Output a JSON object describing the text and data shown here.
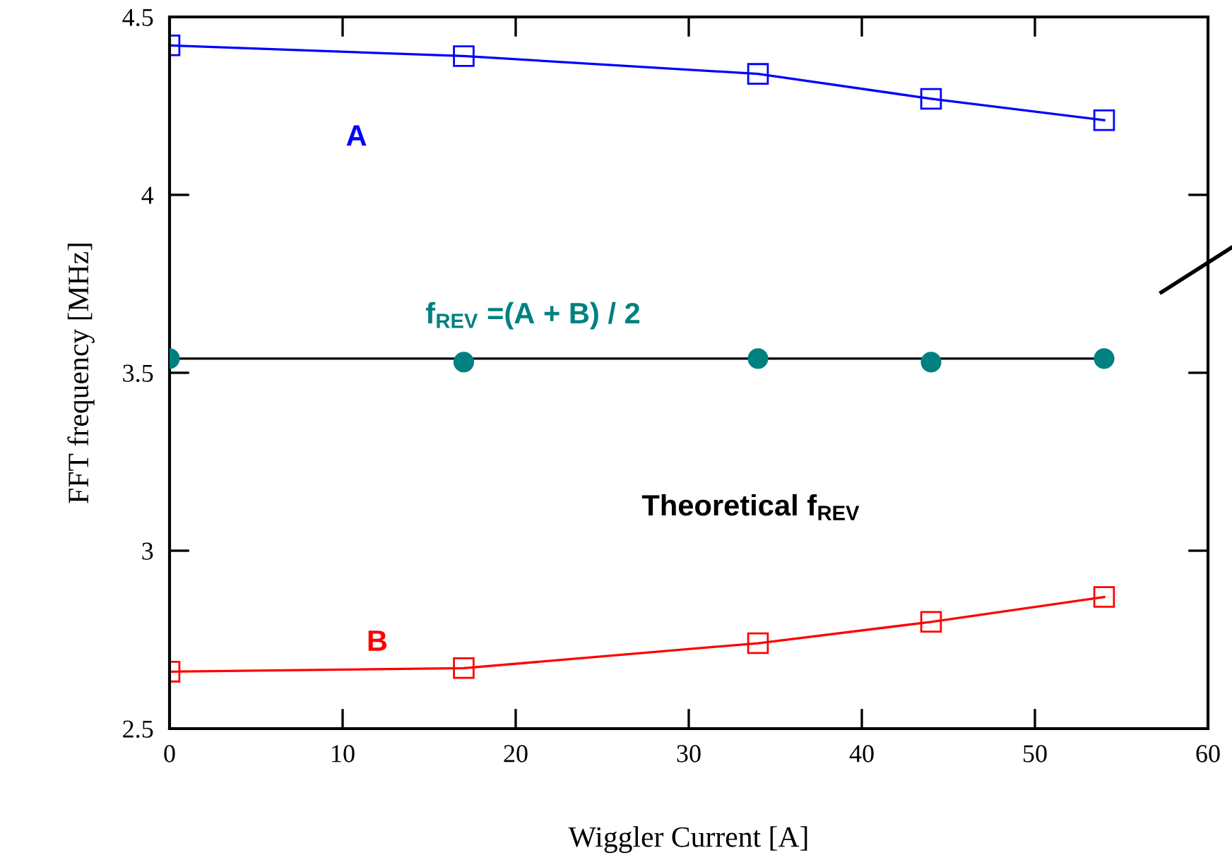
{
  "chart_data": {
    "type": "line",
    "xlabel": "Wiggler Current [A]",
    "ylabel": "FFT frequency [MHz]",
    "xlim": [
      0,
      60
    ],
    "xticks": [
      0,
      10,
      20,
      30,
      40,
      50,
      60
    ],
    "ylim": [
      2.5,
      4.5
    ],
    "yticks": [
      2.5,
      3,
      3.5,
      4,
      4.5
    ],
    "x": [
      0,
      17,
      34,
      44,
      54
    ],
    "grid": false,
    "legend": false,
    "series": [
      {
        "name": "A",
        "color": "#0000ff",
        "values": [
          4.42,
          4.39,
          4.34,
          4.27,
          4.21
        ],
        "marker": "square"
      },
      {
        "name": "f$_{REV}$ =(A + B) / 2",
        "color": "#008080",
        "type": "scatter",
        "values": [
          3.54,
          3.53,
          3.54,
          3.53,
          3.54
        ],
        "marker": "circle"
      },
      {
        "name": "Theoretical f$_{REV}$",
        "color": "#000000",
        "x": [
          0,
          54
        ],
        "values": [
          3.54,
          3.54
        ],
        "marker": "none"
      },
      {
        "name": "B",
        "color": "#ff0000",
        "values": [
          2.66,
          2.67,
          2.74,
          2.8,
          2.87
        ],
        "marker": "square"
      }
    ]
  }
}
